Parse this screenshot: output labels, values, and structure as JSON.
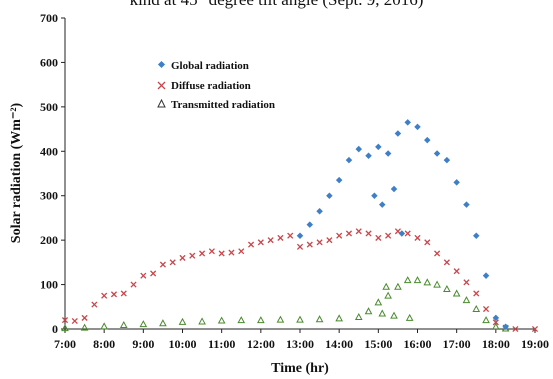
{
  "header": {
    "cut_title": "kind at 45° degree tilt angle (Sept. 9, 2016)"
  },
  "chart_data": {
    "type": "scatter",
    "xlabel": "Time (hr)",
    "ylabel": "Solar radiation (Wm⁻²)",
    "x_range": [
      7,
      19
    ],
    "ylim": [
      0,
      700
    ],
    "x_ticks": [
      "7:00",
      "8:00",
      "9:00",
      "10:00",
      "11:00",
      "12:00",
      "13:00",
      "14:00",
      "15:00",
      "16:00",
      "17:00",
      "18:00",
      "19:00"
    ],
    "y_ticks": [
      "0",
      "100",
      "200",
      "300",
      "400",
      "500",
      "600",
      "700"
    ],
    "grid": false,
    "legend_position": "top-left",
    "series": [
      {
        "name": "Global radiation",
        "color": "#3e7fc8",
        "marker": "diamond",
        "points": [
          [
            13.0,
            210
          ],
          [
            13.25,
            235
          ],
          [
            13.5,
            265
          ],
          [
            13.75,
            300
          ],
          [
            14.0,
            335
          ],
          [
            14.25,
            380
          ],
          [
            14.5,
            405
          ],
          [
            14.75,
            390
          ],
          [
            15.0,
            410
          ],
          [
            15.25,
            395
          ],
          [
            15.5,
            440
          ],
          [
            15.75,
            465
          ],
          [
            16.0,
            455
          ],
          [
            16.25,
            425
          ],
          [
            16.5,
            395
          ],
          [
            16.75,
            380
          ],
          [
            17.0,
            330
          ],
          [
            17.25,
            280
          ],
          [
            17.5,
            210
          ],
          [
            17.75,
            120
          ],
          [
            18.0,
            25
          ],
          [
            18.25,
            5
          ],
          [
            14.9,
            300
          ],
          [
            15.1,
            280
          ],
          [
            15.6,
            215
          ],
          [
            15.4,
            315
          ]
        ]
      },
      {
        "name": "Diffuse radiation",
        "color": "#c8464b",
        "marker": "x",
        "points": [
          [
            7.0,
            20
          ],
          [
            7.25,
            18
          ],
          [
            7.5,
            25
          ],
          [
            7.75,
            55
          ],
          [
            8.0,
            75
          ],
          [
            8.25,
            78
          ],
          [
            8.5,
            80
          ],
          [
            8.75,
            100
          ],
          [
            9.0,
            120
          ],
          [
            9.25,
            125
          ],
          [
            9.5,
            145
          ],
          [
            9.75,
            150
          ],
          [
            10.0,
            160
          ],
          [
            10.25,
            165
          ],
          [
            10.5,
            170
          ],
          [
            10.75,
            175
          ],
          [
            11.0,
            170
          ],
          [
            11.25,
            172
          ],
          [
            11.5,
            175
          ],
          [
            11.75,
            190
          ],
          [
            12.0,
            195
          ],
          [
            12.25,
            200
          ],
          [
            12.5,
            205
          ],
          [
            12.75,
            210
          ],
          [
            13.0,
            185
          ],
          [
            13.25,
            190
          ],
          [
            13.5,
            195
          ],
          [
            13.75,
            200
          ],
          [
            14.0,
            210
          ],
          [
            14.25,
            215
          ],
          [
            14.5,
            220
          ],
          [
            14.75,
            215
          ],
          [
            15.0,
            205
          ],
          [
            15.25,
            210
          ],
          [
            15.5,
            220
          ],
          [
            15.75,
            215
          ],
          [
            16.0,
            205
          ],
          [
            16.25,
            195
          ],
          [
            16.5,
            170
          ],
          [
            16.75,
            150
          ],
          [
            17.0,
            130
          ],
          [
            17.25,
            105
          ],
          [
            17.5,
            80
          ],
          [
            17.75,
            45
          ],
          [
            18.0,
            15
          ],
          [
            18.25,
            3
          ],
          [
            18.5,
            0
          ],
          [
            19.0,
            0
          ]
        ]
      },
      {
        "name": "Transmitted radiation",
        "color": "#4a8a2e",
        "marker": "triangle",
        "points": [
          [
            7.0,
            2
          ],
          [
            7.5,
            3
          ],
          [
            8.0,
            6
          ],
          [
            8.5,
            9
          ],
          [
            9.0,
            11
          ],
          [
            9.5,
            13
          ],
          [
            10.0,
            16
          ],
          [
            10.5,
            17
          ],
          [
            11.0,
            19
          ],
          [
            11.5,
            20
          ],
          [
            12.0,
            20
          ],
          [
            12.5,
            21
          ],
          [
            13.0,
            21
          ],
          [
            13.5,
            22
          ],
          [
            14.0,
            24
          ],
          [
            14.5,
            27
          ],
          [
            14.75,
            40
          ],
          [
            15.0,
            60
          ],
          [
            15.25,
            75
          ],
          [
            15.5,
            95
          ],
          [
            15.75,
            110
          ],
          [
            16.0,
            110
          ],
          [
            16.25,
            105
          ],
          [
            16.5,
            100
          ],
          [
            16.75,
            90
          ],
          [
            17.0,
            80
          ],
          [
            17.25,
            65
          ],
          [
            17.5,
            45
          ],
          [
            17.75,
            20
          ],
          [
            18.0,
            5
          ],
          [
            18.25,
            1
          ],
          [
            15.1,
            35
          ],
          [
            15.4,
            30
          ],
          [
            15.8,
            25
          ],
          [
            15.2,
            95
          ]
        ]
      }
    ]
  }
}
